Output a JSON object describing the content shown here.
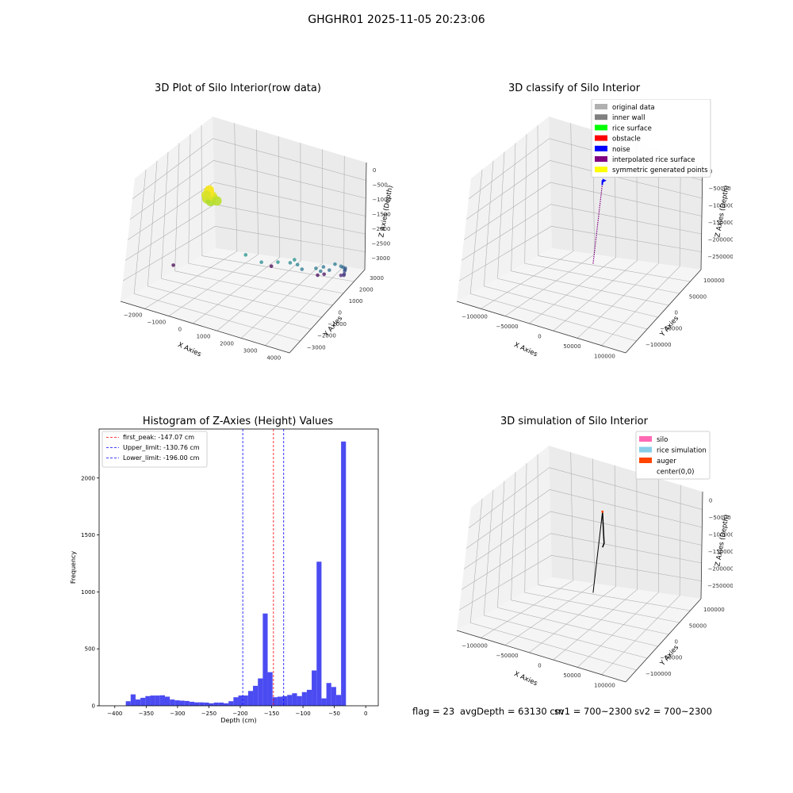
{
  "suptitle": "GHGHR01 2025-11-05 20:23:06",
  "footer": {
    "flag": "flag = 23",
    "avg_depth": "avgDepth = 63130 cm",
    "sv1": "sv1 = 700~2300",
    "sv2": "sv2 = 700~2300"
  },
  "colors": {
    "histogram": "#4b4bf2",
    "first_peak": "#ff0000",
    "limit": "#0000ff",
    "grid": "#b0b0b0",
    "silo": "#ff69b4",
    "rice_simulation": "#87ceeb",
    "auger": "#ff4500"
  },
  "chart_data": [
    {
      "type": "scatter",
      "projection": "3d",
      "title": "3D Plot of Silo Interior(row data)",
      "xlabel": "X Axies",
      "ylabel": "Y Axies",
      "zlabel": "Z Axies (Depth)",
      "xticks": [
        "−2000",
        "−1000",
        "0",
        "1000",
        "2000",
        "3000",
        "4000"
      ],
      "yticks": [
        "−3000",
        "−2000",
        "−1000",
        "0",
        "1000",
        "2000",
        "3000"
      ],
      "zticks": [
        "0",
        "−500",
        "−1000",
        "−1500",
        "−2000",
        "−2500",
        "−3000"
      ],
      "xlim": [
        -2600,
        4200
      ],
      "ylim": [
        -3600,
        3800
      ],
      "zlim": [
        -3400,
        100
      ],
      "colormap": "viridis",
      "points": [
        {
          "x": -350,
          "y": 2300,
          "z": -50
        },
        {
          "x": -300,
          "y": 2400,
          "z": -150
        },
        {
          "x": -420,
          "y": 2200,
          "z": -120
        },
        {
          "x": -250,
          "y": 2250,
          "z": -250
        },
        {
          "x": -380,
          "y": 2350,
          "z": -300
        },
        {
          "x": -320,
          "y": 2150,
          "z": -400
        },
        {
          "x": -200,
          "y": 2300,
          "z": -200
        },
        {
          "x": -100,
          "y": 2100,
          "z": -350
        },
        {
          "x": -270,
          "y": 2450,
          "z": -80
        },
        {
          "x": -450,
          "y": 2300,
          "z": -220
        },
        {
          "x": 1400,
          "y": 2400,
          "z": -1500
        },
        {
          "x": 2000,
          "y": 2300,
          "z": -1600
        },
        {
          "x": 2500,
          "y": 2000,
          "z": -1550
        },
        {
          "x": 2900,
          "y": 1500,
          "z": -1500
        },
        {
          "x": 2700,
          "y": 1400,
          "z": -1650
        },
        {
          "x": 2900,
          "y": 1200,
          "z": -1700
        },
        {
          "x": 3000,
          "y": 1000,
          "z": -1850
        },
        {
          "x": 3400,
          "y": 700,
          "z": -1800
        },
        {
          "x": 3500,
          "y": 500,
          "z": -1900
        },
        {
          "x": 3450,
          "y": 200,
          "z": -1850
        },
        {
          "x": 3600,
          "y": 0,
          "z": -1950
        },
        {
          "x": 3700,
          "y": -200,
          "z": -1800
        },
        {
          "x": 3800,
          "y": -500,
          "z": -1900
        },
        {
          "x": 3750,
          "y": -800,
          "z": -2000
        },
        {
          "x": 3700,
          "y": -1100,
          "z": -2100
        },
        {
          "x": 3600,
          "y": -1300,
          "z": -2200
        },
        {
          "x": 3500,
          "y": -1500,
          "z": -2300
        },
        {
          "x": 3400,
          "y": -1700,
          "z": -2450
        },
        {
          "x": 3300,
          "y": -1900,
          "z": -2550
        },
        {
          "x": 3000,
          "y": -2300,
          "z": -2700
        },
        {
          "x": 2200,
          "y": -2600,
          "z": -2900
        },
        {
          "x": 2000,
          "y": -2500,
          "z": -2950
        },
        {
          "x": 300,
          "y": -2200,
          "z": -3000
        },
        {
          "x": -2300,
          "y": 400,
          "z": -3000
        }
      ]
    },
    {
      "type": "scatter",
      "projection": "3d",
      "title": "3D classify of Silo Interior",
      "xlabel": "X Axies",
      "ylabel": "Y Axies",
      "zlabel": "Z Axies (Depth)",
      "xticks": [
        "−100000",
        "−50000",
        "0",
        "50000",
        "100000"
      ],
      "yticks": [
        "−100000",
        "−50000",
        "0",
        "50000",
        "100000"
      ],
      "zticks": [
        "0",
        "−50000",
        "−100000",
        "−150000",
        "−200000",
        "−250000"
      ],
      "xlim": [
        -130000,
        130000
      ],
      "ylim": [
        -130000,
        130000
      ],
      "zlim": [
        -290000,
        10000
      ],
      "legend_position": "upper right",
      "legend": [
        {
          "label": "original data",
          "color": "#b0b0b0"
        },
        {
          "label": "inner wall",
          "color": "#808080"
        },
        {
          "label": "rice surface",
          "color": "#00ff00"
        },
        {
          "label": "obstacle",
          "color": "#ff0000"
        },
        {
          "label": "noise",
          "color": "#0000ff"
        },
        {
          "label": "interpolated rice surface",
          "color": "#800080"
        },
        {
          "label": "symmetric generated points",
          "color": "#ffff00"
        }
      ],
      "column": {
        "x": 0,
        "y": 0,
        "z_top": -5000,
        "z_bottom": -200000,
        "z_noise_top": -2000,
        "z_noise_bottom": -8000
      }
    },
    {
      "type": "bar",
      "title": "Histogram of Z-Axies (Height) Values",
      "xlabel": "Depth (cm)",
      "ylabel": "Frequency",
      "xlim": [
        -425,
        20
      ],
      "ylim": [
        0,
        2430
      ],
      "xticks": [
        -400,
        -350,
        -300,
        -250,
        -200,
        -150,
        -100,
        -50,
        0
      ],
      "yticks": [
        0,
        500,
        1000,
        1500,
        2000
      ],
      "bin_start": -382.5,
      "bin_width": 7.8,
      "values": [
        40,
        100,
        55,
        70,
        85,
        90,
        90,
        92,
        80,
        55,
        48,
        45,
        42,
        35,
        30,
        30,
        28,
        22,
        28,
        28,
        22,
        40,
        75,
        90,
        90,
        130,
        175,
        240,
        810,
        295,
        75,
        80,
        85,
        95,
        110,
        85,
        120,
        140,
        310,
        1265,
        65,
        200,
        165,
        95,
        2320
      ],
      "lines": [
        {
          "label": "first_peak: -147.07 cm",
          "x": -147.07,
          "role": "first_peak"
        },
        {
          "label": "Upper_limit: -130.76 cm",
          "x": -130.76,
          "role": "limit"
        },
        {
          "label": "Lower_limit: -196.00 cm",
          "x": -196.0,
          "role": "limit"
        }
      ],
      "legend_position": "upper left"
    },
    {
      "type": "line",
      "projection": "3d",
      "title": "3D simulation of Silo Interior",
      "xlabel": "X Axies",
      "ylabel": "Y Axies",
      "zlabel": "Z Axies (Depth)",
      "xticks": [
        "−100000",
        "−50000",
        "0",
        "50000",
        "100000"
      ],
      "yticks": [
        "−100000",
        "−50000",
        "0",
        "50000",
        "100000"
      ],
      "zticks": [
        "0",
        "−50000",
        "−100000",
        "−150000",
        "−200000",
        "−250000"
      ],
      "xlim": [
        -130000,
        130000
      ],
      "ylim": [
        -130000,
        130000
      ],
      "zlim": [
        -290000,
        10000
      ],
      "legend_position": "upper right",
      "legend": [
        {
          "label": "silo",
          "swatch": "silo"
        },
        {
          "label": "rice simulation",
          "swatch": "rice_simulation"
        },
        {
          "label": "auger",
          "swatch": "auger"
        },
        {
          "label": "center(0,0)",
          "swatch": "none"
        }
      ],
      "column": {
        "x": 0,
        "y": 0,
        "z_top": -2000,
        "z_bottom": -200000
      }
    }
  ]
}
